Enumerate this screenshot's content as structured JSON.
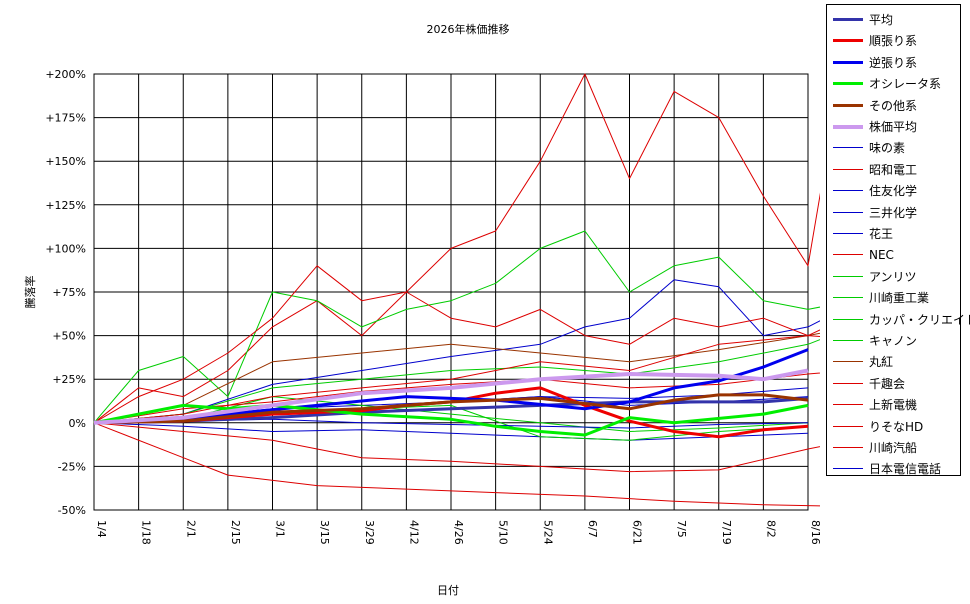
{
  "chart_data": {
    "type": "line",
    "title": "2026年株価推移",
    "xlabel": "日付",
    "ylabel": "騰落率",
    "x_ticks": [
      "1/4",
      "1/18",
      "2/1",
      "2/15",
      "3/1",
      "3/15",
      "3/29",
      "4/12",
      "4/26",
      "5/10",
      "5/24",
      "6/7",
      "6/21",
      "7/5",
      "7/19",
      "8/2",
      "8/16"
    ],
    "y_ticks": [
      "+200%",
      "+175%",
      "+150%",
      "+125%",
      "+100%",
      "+75%",
      "+50%",
      "+25%",
      "0%",
      "-25%",
      "-50%"
    ],
    "ylim": [
      -50,
      200
    ],
    "grid": true,
    "legend_position": "right",
    "series": [
      {
        "name": "平均",
        "color": "#3333aa",
        "width": 3,
        "points": [
          [
            0,
            0
          ],
          [
            2,
            1
          ],
          [
            4,
            3
          ],
          [
            6,
            6
          ],
          [
            8,
            8
          ],
          [
            10,
            10
          ],
          [
            12,
            12
          ],
          [
            14,
            12
          ],
          [
            15,
            12
          ],
          [
            16,
            14
          ]
        ]
      },
      {
        "name": "順張り系",
        "color": "#ee0000",
        "width": 3,
        "points": [
          [
            0,
            0
          ],
          [
            2,
            1
          ],
          [
            4,
            5
          ],
          [
            6,
            7
          ],
          [
            7,
            10
          ],
          [
            8,
            12
          ],
          [
            9,
            17
          ],
          [
            10,
            20
          ],
          [
            11,
            10
          ],
          [
            12,
            1
          ],
          [
            13,
            -5
          ],
          [
            14,
            -8
          ],
          [
            15,
            -4
          ],
          [
            16,
            -2
          ]
        ]
      },
      {
        "name": "逆張り系",
        "color": "#0000ee",
        "width": 3,
        "points": [
          [
            0,
            0
          ],
          [
            2,
            1
          ],
          [
            3,
            5
          ],
          [
            5,
            10
          ],
          [
            7,
            15
          ],
          [
            9,
            13
          ],
          [
            11,
            8
          ],
          [
            12,
            12
          ],
          [
            13,
            20
          ],
          [
            14,
            24
          ],
          [
            15,
            32
          ],
          [
            16,
            42
          ]
        ]
      },
      {
        "name": "オシレータ系",
        "color": "#00ee00",
        "width": 3,
        "points": [
          [
            0,
            0
          ],
          [
            1,
            5
          ],
          [
            2,
            10
          ],
          [
            3,
            8
          ],
          [
            4,
            10
          ],
          [
            6,
            5
          ],
          [
            8,
            2
          ],
          [
            9,
            -2
          ],
          [
            10,
            -5
          ],
          [
            11,
            -7
          ],
          [
            12,
            3
          ],
          [
            13,
            0
          ],
          [
            15,
            5
          ],
          [
            16,
            10
          ]
        ]
      },
      {
        "name": "その他系",
        "color": "#993300",
        "width": 3,
        "points": [
          [
            0,
            0
          ],
          [
            2,
            1
          ],
          [
            4,
            6
          ],
          [
            6,
            8
          ],
          [
            8,
            12
          ],
          [
            10,
            14
          ],
          [
            12,
            8
          ],
          [
            13,
            13
          ],
          [
            14,
            16
          ],
          [
            15,
            16
          ],
          [
            16,
            13
          ]
        ]
      },
      {
        "name": "株価平均",
        "color": "#cc99ee",
        "width": 4,
        "points": [
          [
            0,
            0
          ],
          [
            2,
            3
          ],
          [
            4,
            10
          ],
          [
            6,
            17
          ],
          [
            8,
            20
          ],
          [
            10,
            25
          ],
          [
            12,
            28
          ],
          [
            14,
            27
          ],
          [
            15,
            25
          ],
          [
            16,
            30
          ]
        ]
      },
      {
        "name": "味の素",
        "color": "#0000cc",
        "width": 1,
        "points": [
          [
            0,
            0
          ],
          [
            2,
            2
          ],
          [
            4,
            5
          ],
          [
            6,
            8
          ],
          [
            8,
            12
          ],
          [
            10,
            15
          ],
          [
            12,
            14
          ],
          [
            14,
            16
          ],
          [
            16,
            20
          ]
        ]
      },
      {
        "name": "昭和電工",
        "color": "#dd0000",
        "width": 1,
        "points": [
          [
            0,
            0
          ],
          [
            1,
            20
          ],
          [
            2,
            15
          ],
          [
            3,
            30
          ],
          [
            4,
            55
          ],
          [
            5,
            70
          ],
          [
            6,
            50
          ],
          [
            7,
            75
          ],
          [
            8,
            100
          ],
          [
            9,
            110
          ],
          [
            10,
            150
          ],
          [
            11,
            200
          ],
          [
            12,
            140
          ],
          [
            13,
            190
          ],
          [
            14,
            175
          ],
          [
            15,
            130
          ],
          [
            16,
            90
          ],
          [
            16.5,
            165
          ],
          [
            17,
            150
          ]
        ]
      },
      {
        "name": "住友化学",
        "color": "#0000cc",
        "width": 1,
        "points": [
          [
            0,
            0
          ],
          [
            2,
            -2
          ],
          [
            4,
            -5
          ],
          [
            6,
            -4
          ],
          [
            8,
            -6
          ],
          [
            10,
            -8
          ],
          [
            12,
            -10
          ],
          [
            14,
            -8
          ],
          [
            16,
            -6
          ]
        ]
      },
      {
        "name": "三井化学",
        "color": "#0000cc",
        "width": 1,
        "points": [
          [
            0,
            0
          ],
          [
            2,
            5
          ],
          [
            4,
            22
          ],
          [
            6,
            30
          ],
          [
            8,
            38
          ],
          [
            10,
            45
          ],
          [
            11,
            55
          ],
          [
            12,
            60
          ],
          [
            13,
            82
          ],
          [
            14,
            78
          ],
          [
            15,
            50
          ],
          [
            16,
            55
          ],
          [
            17,
            68
          ]
        ]
      },
      {
        "name": "花王",
        "color": "#0000cc",
        "width": 1,
        "points": [
          [
            0,
            0
          ],
          [
            2,
            3
          ],
          [
            4,
            8
          ],
          [
            6,
            10
          ],
          [
            8,
            12
          ],
          [
            10,
            15
          ],
          [
            12,
            10
          ],
          [
            14,
            12
          ],
          [
            16,
            15
          ]
        ]
      },
      {
        "name": "NEC",
        "color": "#dd0000",
        "width": 1,
        "points": [
          [
            0,
            0
          ],
          [
            2,
            -20
          ],
          [
            3,
            -30
          ],
          [
            5,
            -36
          ],
          [
            7,
            -38
          ],
          [
            9,
            -40
          ],
          [
            11,
            -42
          ],
          [
            13,
            -45
          ],
          [
            15,
            -47
          ],
          [
            17,
            -48
          ]
        ]
      },
      {
        "name": "アンリツ",
        "color": "#00cc00",
        "width": 1,
        "points": [
          [
            0,
            0
          ],
          [
            1,
            30
          ],
          [
            2,
            38
          ],
          [
            3,
            15
          ],
          [
            4,
            75
          ],
          [
            5,
            70
          ],
          [
            6,
            55
          ],
          [
            7,
            65
          ],
          [
            8,
            70
          ],
          [
            9,
            80
          ],
          [
            10,
            100
          ],
          [
            11,
            110
          ],
          [
            12,
            75
          ],
          [
            13,
            90
          ],
          [
            14,
            95
          ],
          [
            15,
            70
          ],
          [
            16,
            65
          ],
          [
            17,
            70
          ]
        ]
      },
      {
        "name": "川崎重工業",
        "color": "#00cc00",
        "width": 1,
        "points": [
          [
            0,
            0
          ],
          [
            2,
            5
          ],
          [
            4,
            20
          ],
          [
            6,
            25
          ],
          [
            8,
            30
          ],
          [
            10,
            32
          ],
          [
            12,
            28
          ],
          [
            14,
            35
          ],
          [
            16,
            45
          ],
          [
            17,
            55
          ]
        ]
      },
      {
        "name": "カッパ・クリエイト",
        "color": "#00cc00",
        "width": 1,
        "points": [
          [
            0,
            0
          ],
          [
            2,
            2
          ],
          [
            4,
            15
          ],
          [
            6,
            10
          ],
          [
            8,
            5
          ],
          [
            10,
            0
          ],
          [
            12,
            -5
          ],
          [
            14,
            -3
          ],
          [
            16,
            0
          ]
        ]
      },
      {
        "name": "キャノン",
        "color": "#00cc00",
        "width": 1,
        "points": [
          [
            0,
            0
          ],
          [
            2,
            3
          ],
          [
            4,
            5
          ],
          [
            6,
            8
          ],
          [
            8,
            10
          ],
          [
            10,
            -8
          ],
          [
            12,
            -10
          ],
          [
            14,
            -5
          ],
          [
            16,
            -2
          ]
        ]
      },
      {
        "name": "丸紅",
        "color": "#993300",
        "width": 1,
        "points": [
          [
            0,
            0
          ],
          [
            2,
            10
          ],
          [
            4,
            35
          ],
          [
            6,
            40
          ],
          [
            8,
            45
          ],
          [
            10,
            40
          ],
          [
            12,
            35
          ],
          [
            14,
            42
          ],
          [
            16,
            50
          ],
          [
            17,
            55
          ]
        ]
      },
      {
        "name": "千趣会",
        "color": "#dd0000",
        "width": 1,
        "points": [
          [
            0,
            0
          ],
          [
            1,
            15
          ],
          [
            2,
            25
          ],
          [
            3,
            40
          ],
          [
            4,
            60
          ],
          [
            5,
            90
          ],
          [
            6,
            70
          ],
          [
            7,
            75
          ],
          [
            8,
            60
          ],
          [
            9,
            55
          ],
          [
            10,
            65
          ],
          [
            11,
            50
          ],
          [
            12,
            45
          ],
          [
            13,
            60
          ],
          [
            14,
            55
          ],
          [
            15,
            60
          ],
          [
            16,
            50
          ],
          [
            17,
            62
          ]
        ]
      },
      {
        "name": "上新電機",
        "color": "#dd0000",
        "width": 1,
        "points": [
          [
            0,
            0
          ],
          [
            2,
            -5
          ],
          [
            4,
            -10
          ],
          [
            6,
            -20
          ],
          [
            8,
            -22
          ],
          [
            10,
            -25
          ],
          [
            12,
            -28
          ],
          [
            14,
            -27
          ],
          [
            16,
            -15
          ],
          [
            17,
            -10
          ]
        ]
      },
      {
        "name": "りそなHD",
        "color": "#dd0000",
        "width": 1,
        "points": [
          [
            0,
            0
          ],
          [
            2,
            8
          ],
          [
            4,
            12
          ],
          [
            6,
            18
          ],
          [
            8,
            22
          ],
          [
            10,
            25
          ],
          [
            12,
            20
          ],
          [
            14,
            22
          ],
          [
            16,
            28
          ],
          [
            17,
            30
          ]
        ]
      },
      {
        "name": "川崎汽船",
        "color": "#dd0000",
        "width": 1,
        "points": [
          [
            0,
            0
          ],
          [
            2,
            5
          ],
          [
            4,
            15
          ],
          [
            6,
            20
          ],
          [
            8,
            25
          ],
          [
            10,
            35
          ],
          [
            12,
            30
          ],
          [
            14,
            45
          ],
          [
            16,
            50
          ],
          [
            17,
            48
          ]
        ]
      },
      {
        "name": "日本電信電話",
        "color": "#0000cc",
        "width": 1,
        "points": [
          [
            0,
            0
          ],
          [
            2,
            1
          ],
          [
            4,
            2
          ],
          [
            6,
            0
          ],
          [
            8,
            -1
          ],
          [
            10,
            -2
          ],
          [
            12,
            -3
          ],
          [
            14,
            -1
          ],
          [
            16,
            0
          ]
        ]
      }
    ]
  }
}
